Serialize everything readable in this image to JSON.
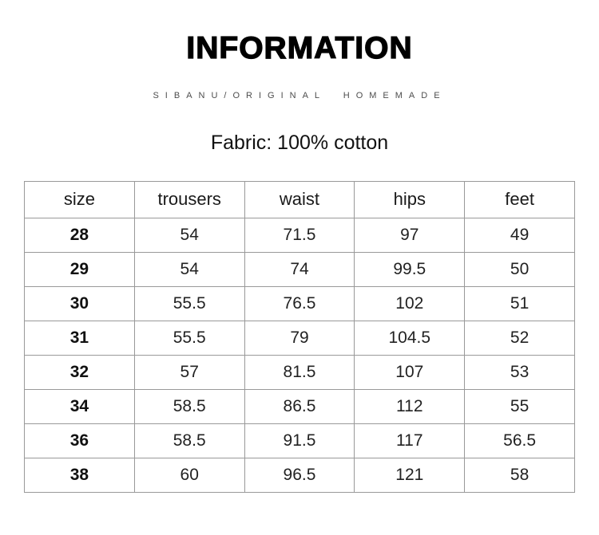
{
  "page": {
    "title": "INFORMATION",
    "subtitle": "SIBANU/ORIGINAL  HOMEMADE",
    "fabric_note": "Fabric: 100% cotton"
  },
  "size_table": {
    "columns": [
      "size",
      "trousers",
      "waist",
      "hips",
      "feet"
    ],
    "rows": [
      [
        "28",
        "54",
        "71.5",
        "97",
        "49"
      ],
      [
        "29",
        "54",
        "74",
        "99.5",
        "50"
      ],
      [
        "30",
        "55.5",
        "76.5",
        "102",
        "51"
      ],
      [
        "31",
        "55.5",
        "79",
        "104.5",
        "52"
      ],
      [
        "32",
        "57",
        "81.5",
        "107",
        "53"
      ],
      [
        "34",
        "58.5",
        "86.5",
        "112",
        "55"
      ],
      [
        "36",
        "58.5",
        "91.5",
        "117",
        "56.5"
      ],
      [
        "38",
        "60",
        "96.5",
        "121",
        "58"
      ]
    ]
  },
  "colors": {
    "table_border": "#999999",
    "title_text": "#000000",
    "subtitle_text": "#4d4d4d",
    "body_text": "#222222",
    "background": "#ffffff"
  }
}
